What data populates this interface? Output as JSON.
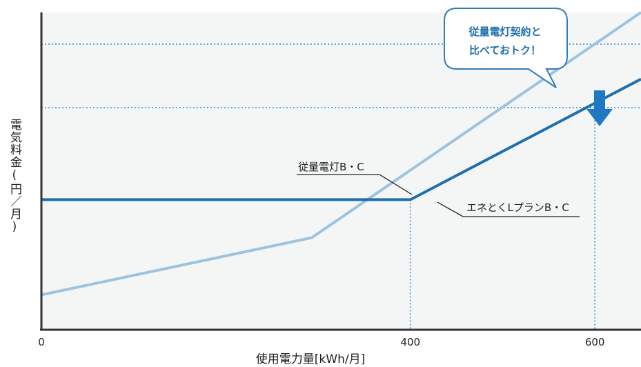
{
  "chart_data": {
    "type": "line",
    "xlabel": "使用電力量[kWh/月]",
    "ylabel": "電気料金(円／月)",
    "x_ticks": [
      0,
      400,
      600
    ],
    "xlim": [
      0,
      650
    ],
    "ylim": [
      0,
      100
    ],
    "series": [
      {
        "name": "従量電灯B・C",
        "color": "#9cc3df",
        "x": [
          0,
          293,
          650
        ],
        "y": [
          11,
          29,
          100
        ]
      },
      {
        "name": "エネとくLプランB・C",
        "color": "#1f6fae",
        "x": [
          0,
          400,
          650
        ],
        "y": [
          41,
          41,
          79
        ]
      }
    ],
    "reference_lines": {
      "vertical_x": [
        400,
        600
      ],
      "horizontal_y": [
        90,
        70
      ]
    },
    "annotation": {
      "lines": [
        "従量電灯契約と",
        "比べておトク！"
      ]
    },
    "colors": {
      "axis": "#333333",
      "plot_background": "#f4f6f6",
      "dotted": "#5aa7d8",
      "callout_border": "#2f7dbd",
      "arrow": "#1f78c2"
    }
  }
}
